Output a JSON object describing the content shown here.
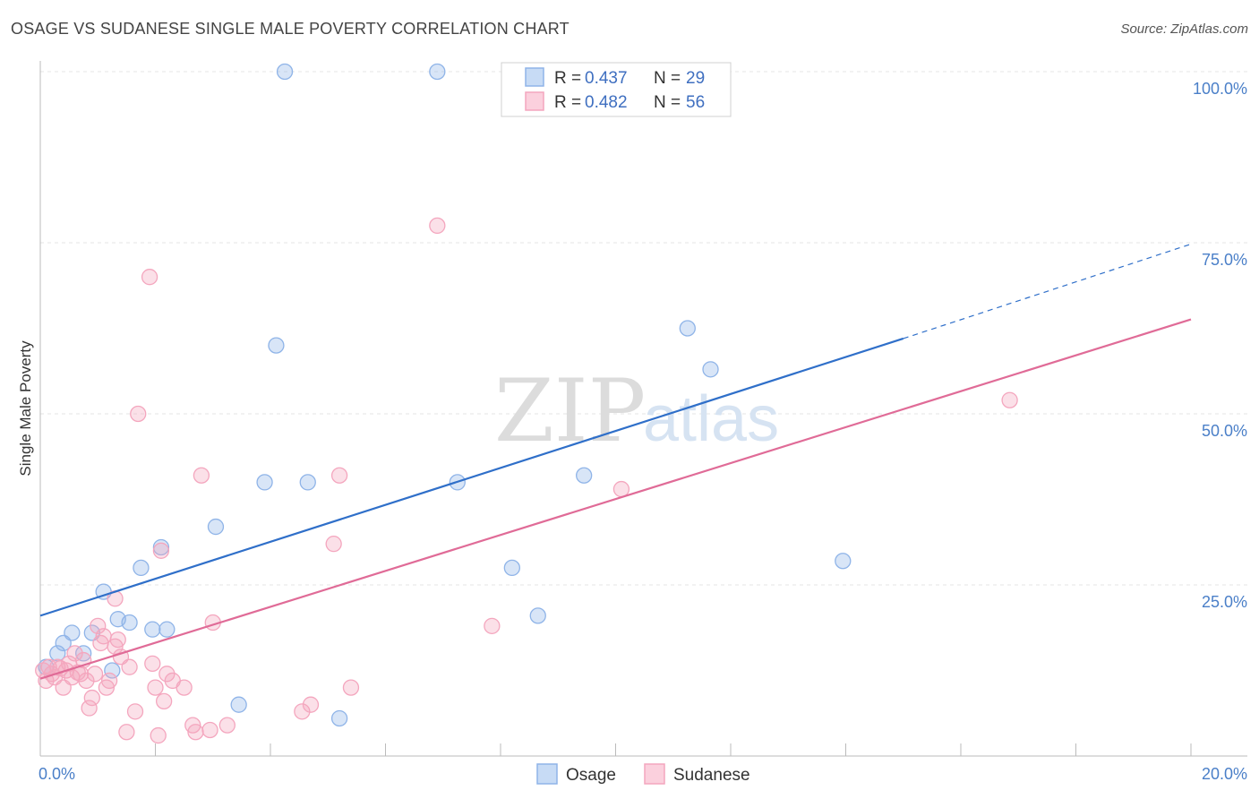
{
  "header": {
    "title": "OSAGE VS SUDANESE SINGLE MALE POVERTY CORRELATION CHART",
    "source": "Source: ZipAtlas.com"
  },
  "watermark": {
    "zip": "ZIP",
    "atlas": "atlas"
  },
  "colors": {
    "osage": "#8fb4e8",
    "osage_line": "#2f6fc9",
    "sudanese": "#f4a6be",
    "sudanese_line": "#e06b97",
    "tick": "#4a7fc8",
    "grid": "#e4e4e4"
  },
  "legend": {
    "r_label": "R =",
    "n_label": "N =",
    "osage": {
      "r": "0.437",
      "n": "29"
    },
    "sudanese": {
      "r": "0.482",
      "n": "56"
    }
  },
  "chart_data": {
    "type": "scatter",
    "title": "OSAGE VS SUDANESE SINGLE MALE POVERTY CORRELATION CHART",
    "ylabel": "Single Male Poverty",
    "xlim": [
      0,
      20
    ],
    "ylim": [
      0,
      100
    ],
    "x_tick_labels": [
      "0.0%",
      "20.0%"
    ],
    "y_ticks": [
      25,
      50,
      75,
      100
    ],
    "y_tick_labels": [
      "25.0%",
      "50.0%",
      "75.0%",
      "100.0%"
    ],
    "grid": true,
    "legend_position": "top-center",
    "series": [
      {
        "name": "Osage",
        "color": "#8fb4e8",
        "trend": {
          "x0": 0,
          "y0": 20.5,
          "x1": 15,
          "y1": 61,
          "dashed_to_x": 20,
          "dashed_to_y": 74.8
        },
        "points": [
          [
            0.1,
            13.0
          ],
          [
            0.3,
            15.0
          ],
          [
            0.4,
            16.5
          ],
          [
            0.55,
            18.0
          ],
          [
            0.75,
            15.0
          ],
          [
            0.9,
            18.0
          ],
          [
            1.1,
            24.0
          ],
          [
            1.25,
            12.5
          ],
          [
            1.35,
            20.0
          ],
          [
            1.55,
            19.5
          ],
          [
            1.75,
            27.5
          ],
          [
            1.95,
            18.5
          ],
          [
            2.1,
            30.5
          ],
          [
            2.2,
            18.5
          ],
          [
            3.05,
            33.5
          ],
          [
            3.45,
            7.5
          ],
          [
            3.9,
            40.0
          ],
          [
            4.1,
            60.0
          ],
          [
            4.25,
            100.0
          ],
          [
            4.65,
            40.0
          ],
          [
            5.2,
            5.5
          ],
          [
            6.9,
            100.0
          ],
          [
            7.25,
            40.0
          ],
          [
            8.2,
            27.5
          ],
          [
            8.65,
            20.5
          ],
          [
            9.45,
            41.0
          ],
          [
            11.25,
            62.5
          ],
          [
            11.65,
            56.5
          ],
          [
            13.95,
            28.5
          ]
        ]
      },
      {
        "name": "Sudanese",
        "color": "#f4a6be",
        "trend": {
          "x0": 0,
          "y0": 11.3,
          "x1": 20,
          "y1": 63.8
        },
        "points": [
          [
            0.05,
            12.5
          ],
          [
            0.1,
            11.0
          ],
          [
            0.15,
            13.0
          ],
          [
            0.2,
            12.0
          ],
          [
            0.25,
            11.5
          ],
          [
            0.3,
            13.0
          ],
          [
            0.4,
            10.0
          ],
          [
            0.45,
            12.5
          ],
          [
            0.5,
            13.5
          ],
          [
            0.55,
            11.5
          ],
          [
            0.6,
            15.0
          ],
          [
            0.7,
            12.0
          ],
          [
            0.75,
            14.0
          ],
          [
            0.8,
            11.0
          ],
          [
            0.85,
            7.0
          ],
          [
            0.9,
            8.5
          ],
          [
            0.95,
            12.0
          ],
          [
            1.0,
            19.0
          ],
          [
            1.05,
            16.5
          ],
          [
            1.1,
            17.5
          ],
          [
            1.15,
            10.0
          ],
          [
            1.2,
            11.0
          ],
          [
            1.3,
            16.0
          ],
          [
            1.3,
            23.0
          ],
          [
            1.35,
            17.0
          ],
          [
            1.4,
            14.5
          ],
          [
            1.5,
            3.5
          ],
          [
            1.55,
            13.0
          ],
          [
            1.65,
            6.5
          ],
          [
            1.7,
            50.0
          ],
          [
            1.9,
            70.0
          ],
          [
            1.95,
            13.5
          ],
          [
            2.0,
            10.0
          ],
          [
            2.05,
            3.0
          ],
          [
            2.1,
            30.0
          ],
          [
            2.15,
            8.0
          ],
          [
            2.2,
            12.0
          ],
          [
            2.3,
            11.0
          ],
          [
            2.5,
            10.0
          ],
          [
            2.65,
            4.5
          ],
          [
            2.7,
            3.5
          ],
          [
            2.8,
            41.0
          ],
          [
            2.95,
            3.8
          ],
          [
            3.0,
            19.5
          ],
          [
            3.25,
            4.5
          ],
          [
            4.55,
            6.5
          ],
          [
            4.7,
            7.5
          ],
          [
            5.1,
            31.0
          ],
          [
            5.2,
            41.0
          ],
          [
            5.4,
            10.0
          ],
          [
            6.9,
            77.5
          ],
          [
            7.85,
            19.0
          ],
          [
            10.1,
            39.0
          ],
          [
            16.85,
            52.0
          ],
          [
            0.35,
            12.8
          ],
          [
            0.65,
            12.2
          ]
        ]
      }
    ]
  },
  "bottom_legend": {
    "osage": "Osage",
    "sudanese": "Sudanese"
  }
}
